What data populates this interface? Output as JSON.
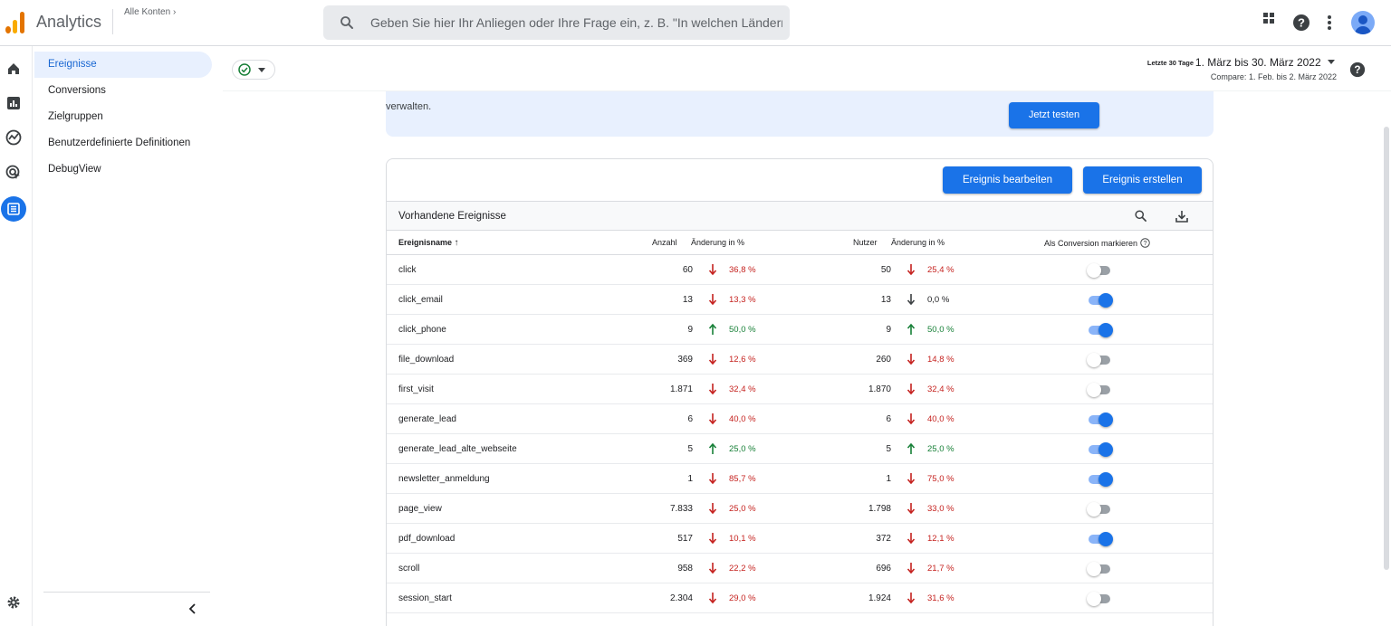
{
  "app": {
    "title": "Analytics",
    "accounts_label": "Alle Konten",
    "search_placeholder": "Geben Sie hier Ihr Anliegen oder Ihre Frage ein, z. B. \"In welchen Ländern ..."
  },
  "subnav": {
    "items": [
      {
        "label": "Ereignisse",
        "active": true
      },
      {
        "label": "Conversions",
        "active": false
      },
      {
        "label": "Zielgruppen",
        "active": false
      },
      {
        "label": "Benutzerdefinierte Definitionen",
        "active": false
      },
      {
        "label": "DebugView",
        "active": false
      }
    ]
  },
  "header": {
    "date_preset": "Letzte 30 Tage",
    "date_range": "1. März bis 30. März 2022",
    "compare": "Compare: 1. Feb. bis 2. März 2022"
  },
  "banner": {
    "text": "verwalten.",
    "button": "Jetzt testen"
  },
  "card": {
    "edit_button": "Ereignis bearbeiten",
    "create_button": "Ereignis erstellen",
    "title": "Vorhandene Ereignisse",
    "columns": {
      "name": "Ereignisname",
      "count": "Anzahl",
      "count_change": "Änderung in %",
      "users": "Nutzer",
      "users_change": "Änderung in %",
      "conversion": "Als Conversion markieren"
    },
    "rows": [
      {
        "name": "click",
        "count": "60",
        "count_dir": "down",
        "count_change": "36,8 %",
        "users": "50",
        "users_dir": "down",
        "users_change": "25,4 %",
        "conversion": false
      },
      {
        "name": "click_email",
        "count": "13",
        "count_dir": "down",
        "count_change": "13,3 %",
        "users": "13",
        "users_dir": "neutral",
        "users_change": "0,0 %",
        "conversion": true
      },
      {
        "name": "click_phone",
        "count": "9",
        "count_dir": "up",
        "count_change": "50,0 %",
        "users": "9",
        "users_dir": "up",
        "users_change": "50,0 %",
        "conversion": true
      },
      {
        "name": "file_download",
        "count": "369",
        "count_dir": "down",
        "count_change": "12,6 %",
        "users": "260",
        "users_dir": "down",
        "users_change": "14,8 %",
        "conversion": false
      },
      {
        "name": "first_visit",
        "count": "1.871",
        "count_dir": "down",
        "count_change": "32,4 %",
        "users": "1.870",
        "users_dir": "down",
        "users_change": "32,4 %",
        "conversion": false
      },
      {
        "name": "generate_lead",
        "count": "6",
        "count_dir": "down",
        "count_change": "40,0 %",
        "users": "6",
        "users_dir": "down",
        "users_change": "40,0 %",
        "conversion": true
      },
      {
        "name": "generate_lead_alte_webseite",
        "count": "5",
        "count_dir": "up",
        "count_change": "25,0 %",
        "users": "5",
        "users_dir": "up",
        "users_change": "25,0 %",
        "conversion": true
      },
      {
        "name": "newsletter_anmeldung",
        "count": "1",
        "count_dir": "down",
        "count_change": "85,7 %",
        "users": "1",
        "users_dir": "down",
        "users_change": "75,0 %",
        "conversion": true
      },
      {
        "name": "page_view",
        "count": "7.833",
        "count_dir": "down",
        "count_change": "25,0 %",
        "users": "1.798",
        "users_dir": "down",
        "users_change": "33,0 %",
        "conversion": false
      },
      {
        "name": "pdf_download",
        "count": "517",
        "count_dir": "down",
        "count_change": "10,1 %",
        "users": "372",
        "users_dir": "down",
        "users_change": "12,1 %",
        "conversion": true
      },
      {
        "name": "scroll",
        "count": "958",
        "count_dir": "down",
        "count_change": "22,2 %",
        "users": "696",
        "users_dir": "down",
        "users_change": "21,7 %",
        "conversion": false
      },
      {
        "name": "session_start",
        "count": "2.304",
        "count_dir": "down",
        "count_change": "29,0 %",
        "users": "1.924",
        "users_dir": "down",
        "users_change": "31,6 %",
        "conversion": false
      }
    ]
  },
  "colors": {
    "accent": "#1a73e8",
    "up": "#188038",
    "down": "#c5221f",
    "logo_orange": "#f9ab00",
    "logo_dark_orange": "#e37400"
  }
}
